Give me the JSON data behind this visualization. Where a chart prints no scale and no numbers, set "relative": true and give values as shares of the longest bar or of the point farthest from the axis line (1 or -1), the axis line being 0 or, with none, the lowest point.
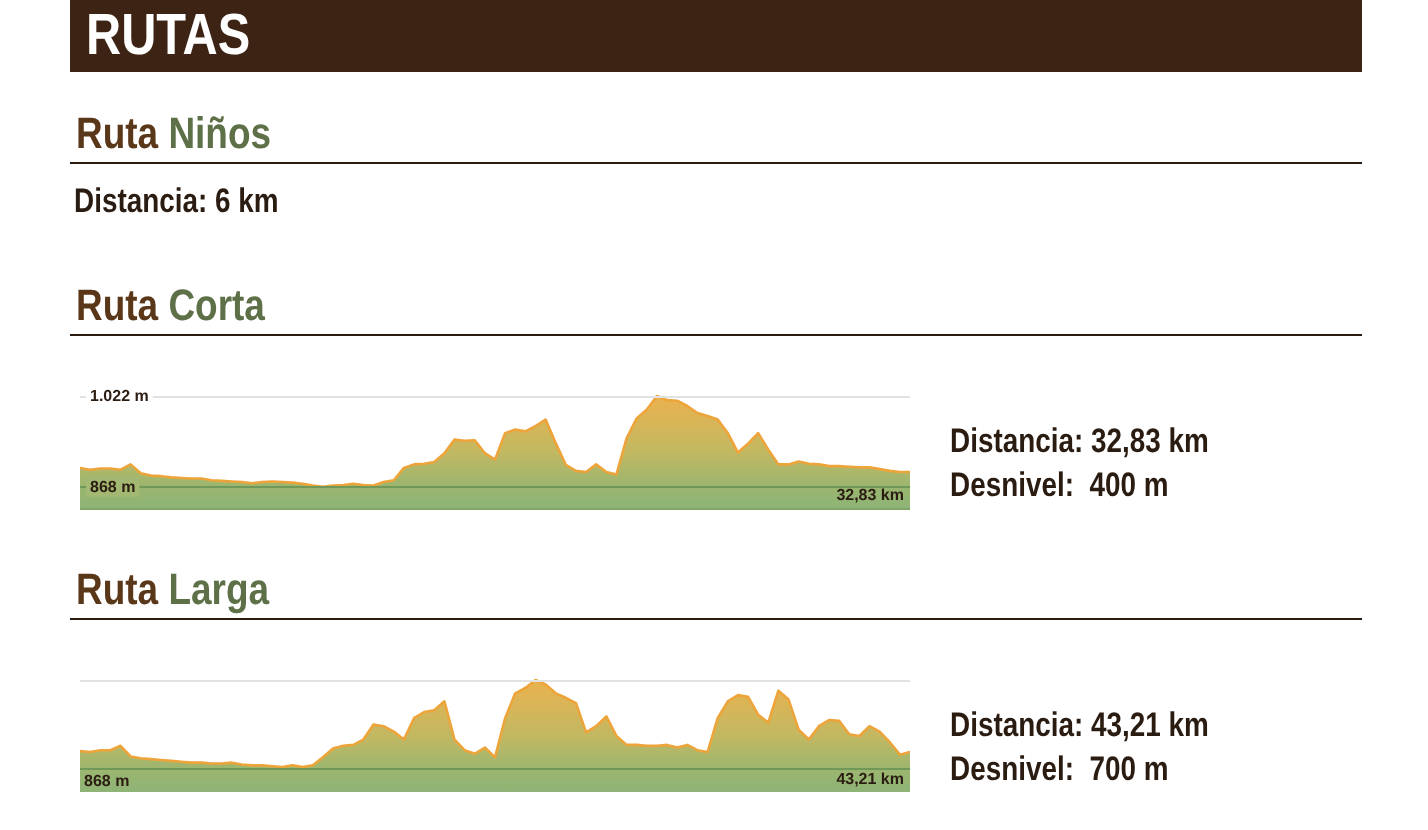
{
  "chart_data": [
    {
      "type": "other",
      "title": "RUTAS",
      "subtitle": "Ruta Niños",
      "annotations": [
        "Distancia: 6 km"
      ]
    },
    {
      "type": "area",
      "title": "Ruta Corta",
      "xlabel": "32,83 km",
      "annotations": [
        "Distancia: 32,83 km",
        "Desnivel:  400 m"
      ],
      "color": "#eda43a",
      "categories": [
        null,
        null,
        null,
        null,
        null,
        null,
        null,
        null,
        null,
        null,
        null,
        null,
        null,
        null,
        null,
        null,
        null,
        null,
        null,
        null,
        null,
        null,
        null,
        null,
        null,
        null,
        null,
        null,
        null,
        null,
        null,
        null,
        null,
        null,
        null,
        null,
        null,
        null,
        null,
        null,
        null,
        null,
        null,
        null,
        null,
        null,
        null,
        null,
        null,
        null,
        null,
        null,
        null,
        null,
        null,
        null,
        null,
        null,
        null,
        null,
        null,
        null,
        null,
        null,
        null,
        null,
        null,
        null,
        null,
        null,
        null,
        null,
        null,
        null,
        null,
        null,
        null,
        null,
        null,
        null,
        null,
        null,
        null
      ],
      "values": [
        900,
        897,
        899,
        899,
        897,
        906,
        891,
        887,
        886,
        884,
        883,
        882,
        882,
        879,
        878,
        877,
        876,
        874,
        876,
        877,
        876,
        875,
        873,
        870,
        868,
        870,
        871,
        873,
        871,
        870,
        876,
        879,
        900,
        906,
        907,
        910,
        925,
        948,
        946,
        947,
        925,
        914,
        959,
        965,
        962,
        971,
        982,
        942,
        905,
        895,
        893,
        906,
        893,
        889,
        950,
        984,
        999,
        1022,
        1015,
        1014,
        1005,
        993,
        988,
        982,
        959,
        926,
        941,
        959,
        931,
        906,
        906,
        911,
        907,
        906,
        903,
        903,
        902,
        901,
        901,
        898,
        895,
        893,
        893
      ],
      "ylim": [
        832,
        1022
      ],
      "yticks": [
        {
          "value": 868,
          "label": "868 m"
        },
        {
          "value": 1022,
          "label": "1.022 m"
        }
      ],
      "ref_lines": [
        {
          "axis": "y",
          "value": 868,
          "color": "#6f9859"
        },
        {
          "axis": "y",
          "value": 1022,
          "color": "#e2e2e2"
        }
      ]
    },
    {
      "type": "area",
      "relative": true,
      "title": "Ruta Larga",
      "xlabel": "43,21 km",
      "annotations": [
        "Distancia: 43,21 km",
        "Desnivel:  700 m"
      ],
      "color": "#eda43a",
      "categories": [
        null,
        null,
        null,
        null,
        null,
        null,
        null,
        null,
        null,
        null,
        null,
        null,
        null,
        null,
        null,
        null,
        null,
        null,
        null,
        null,
        null,
        null,
        null,
        null,
        null,
        null,
        null,
        null,
        null,
        null,
        null,
        null,
        null,
        null,
        null,
        null,
        null,
        null,
        null,
        null,
        null,
        null,
        null,
        null,
        null,
        null,
        null,
        null,
        null,
        null,
        null,
        null,
        null,
        null,
        null,
        null,
        null,
        null,
        null,
        null,
        null,
        null,
        null,
        null,
        null,
        null,
        null,
        null,
        null,
        null,
        null,
        null,
        null,
        null,
        null,
        null,
        null,
        null,
        null,
        null,
        null,
        null,
        null
      ],
      "values": [
        0.2,
        0.19,
        0.21,
        0.21,
        0.26,
        0.14,
        0.12,
        0.11,
        0.1,
        0.09,
        0.08,
        0.07,
        0.07,
        0.06,
        0.06,
        0.07,
        0.05,
        0.04,
        0.04,
        0.03,
        0.02,
        0.04,
        0.02,
        0.04,
        0.13,
        0.23,
        0.26,
        0.27,
        0.33,
        0.5,
        0.48,
        0.42,
        0.33,
        0.57,
        0.64,
        0.66,
        0.76,
        0.33,
        0.21,
        0.17,
        0.24,
        0.13,
        0.57,
        0.85,
        0.91,
        1,
        0.95,
        0.85,
        0.8,
        0.74,
        0.41,
        0.48,
        0.59,
        0.37,
        0.27,
        0.27,
        0.26,
        0.26,
        0.27,
        0.24,
        0.27,
        0.21,
        0.19,
        0.57,
        0.76,
        0.83,
        0.81,
        0.61,
        0.52,
        0.88,
        0.78,
        0.44,
        0.33,
        0.48,
        0.55,
        0.54,
        0.39,
        0.37,
        0.48,
        0.42,
        0.3,
        0.16,
        0.19
      ],
      "ref_lines": [
        {
          "axis": "y",
          "value": 0,
          "label": "868 m",
          "color": "#6f9859"
        },
        {
          "axis": "y",
          "value": 1,
          "color": "#e2e2e2"
        }
      ]
    }
  ]
}
